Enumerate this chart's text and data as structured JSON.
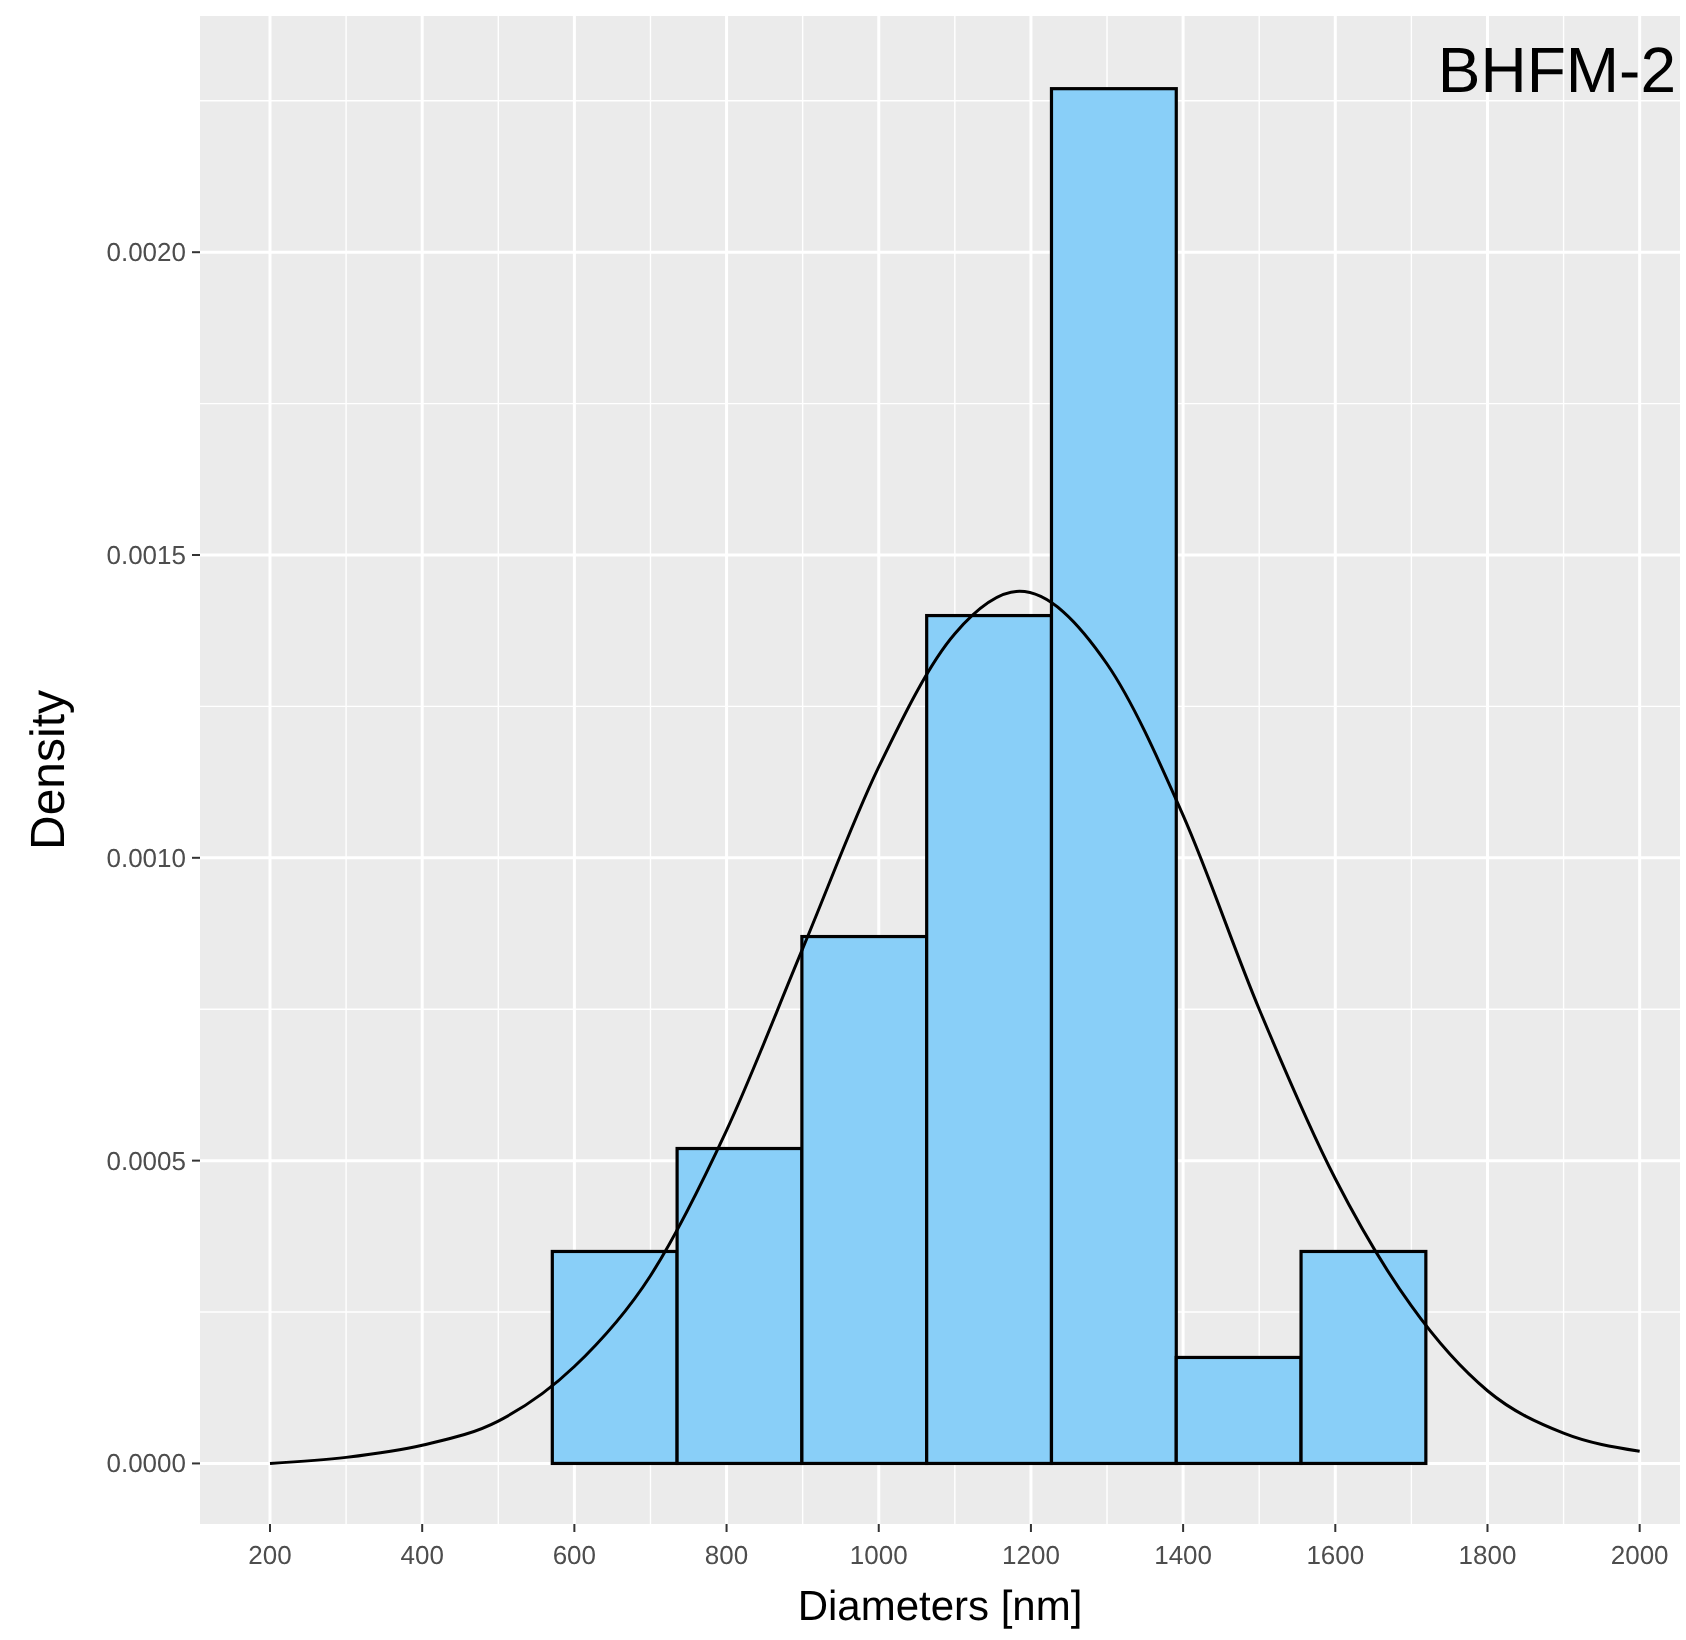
{
  "chart_data": {
    "type": "histogram",
    "title": "BHFM-2",
    "xlabel": "Diameters [nm]",
    "ylabel": "Density",
    "bins": [
      243,
      407,
      571,
      735,
      899,
      1063,
      1227,
      1391,
      1555,
      1719,
      1883
    ],
    "values": [
      0,
      0,
      0.00035,
      0.00052,
      0.00087,
      0.0014,
      0.00227,
      0.000175,
      0.00035,
      0
    ],
    "color": "#89cff8",
    "series": [
      {
        "type": "line",
        "color": "#000000",
        "x": [
          200,
          300,
          400,
          500,
          600,
          700,
          800,
          900,
          1000,
          1100,
          1185,
          1300,
          1400,
          1500,
          1600,
          1700,
          1800,
          1900,
          2000
        ],
        "values": [
          0,
          1e-05,
          3e-05,
          7e-05,
          0.00016,
          0.00031,
          0.00055,
          0.00085,
          0.00115,
          0.00137,
          0.00144,
          0.00132,
          0.00107,
          0.00075,
          0.00047,
          0.00026,
          0.00012,
          5e-05,
          2e-05
        ]
      }
    ],
    "xlim": [
      108,
      2053
    ],
    "xticks": [
      200,
      400,
      600,
      800,
      1000,
      1200,
      1400,
      1600,
      1800,
      2000
    ],
    "ylim": [
      -0.0001,
      0.00239
    ],
    "yticks": [
      {
        "value": 0,
        "label": "0.0000"
      },
      {
        "value": 0.0005,
        "label": "0.0005"
      },
      {
        "value": 0.001,
        "label": "0.0010"
      },
      {
        "value": 0.0015,
        "label": "0.0015"
      },
      {
        "value": 0.002,
        "label": "0.0020"
      }
    ],
    "grid": true,
    "line_style": "solid"
  }
}
